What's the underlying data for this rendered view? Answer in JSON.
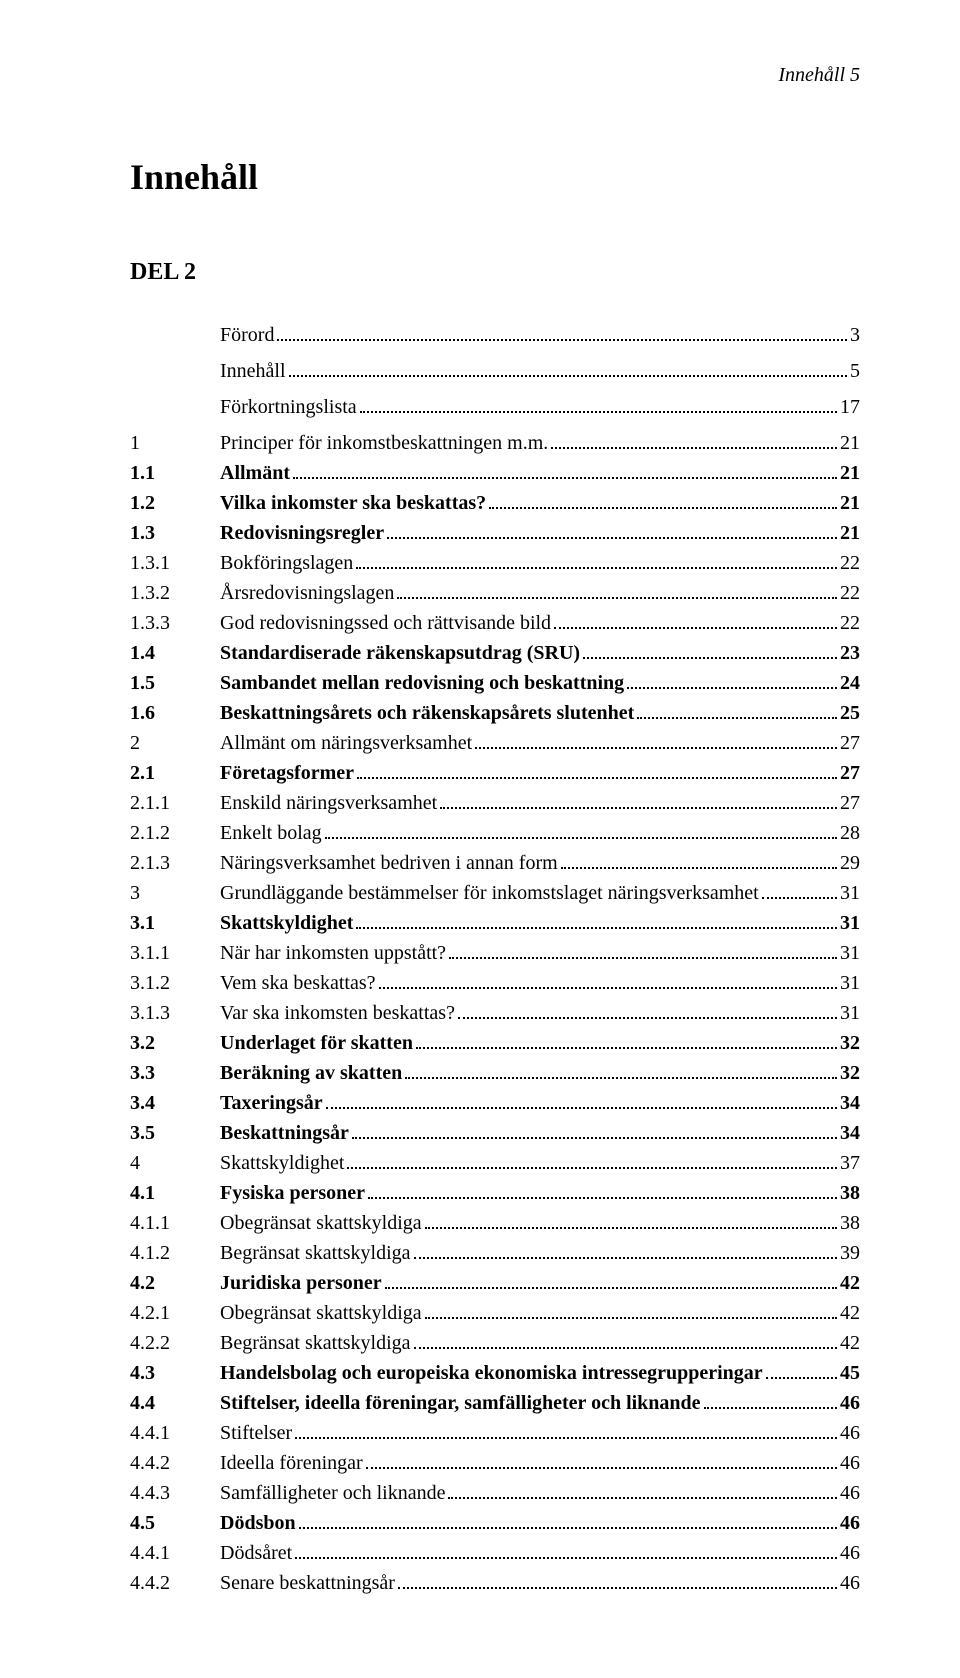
{
  "page_header": "Innehåll 5",
  "main_heading": "Innehåll",
  "part_heading": "DEL 2",
  "pre_entries": [
    {
      "num": "",
      "title": "Förord",
      "page": "3"
    },
    {
      "num": "",
      "title": "Innehåll",
      "page": "5"
    },
    {
      "num": "",
      "title": "Förkortningslista",
      "page": "17"
    }
  ],
  "entries": [
    {
      "num": "1",
      "title": "Principer för inkomstbeskattningen m.m.",
      "page": "21",
      "bold": false
    },
    {
      "num": "1.1",
      "title": "Allmänt",
      "page": "21",
      "bold": true
    },
    {
      "num": "1.2",
      "title": "Vilka inkomster ska beskattas?",
      "page": "21",
      "bold": true
    },
    {
      "num": "1.3",
      "title": "Redovisningsregler",
      "page": "21",
      "bold": true
    },
    {
      "num": "1.3.1",
      "title": "Bokföringslagen",
      "page": "22",
      "bold": false
    },
    {
      "num": "1.3.2",
      "title": "Årsredovisningslagen",
      "page": "22",
      "bold": false
    },
    {
      "num": "1.3.3",
      "title": "God redovisningssed och rättvisande bild",
      "page": "22",
      "bold": false
    },
    {
      "num": "1.4",
      "title": "Standardiserade räkenskapsutdrag (SRU)",
      "page": "23",
      "bold": true
    },
    {
      "num": "1.5",
      "title": "Sambandet mellan redovisning och beskattning",
      "page": "24",
      "bold": true
    },
    {
      "num": "1.6",
      "title": "Beskattningsårets och räkenskapsårets slutenhet",
      "page": "25",
      "bold": true
    },
    {
      "num": "2",
      "title": "Allmänt om näringsverksamhet",
      "page": "27",
      "bold": false
    },
    {
      "num": "2.1",
      "title": "Företagsformer",
      "page": "27",
      "bold": true
    },
    {
      "num": "2.1.1",
      "title": "Enskild näringsverksamhet",
      "page": "27",
      "bold": false
    },
    {
      "num": "2.1.2",
      "title": "Enkelt bolag",
      "page": "28",
      "bold": false
    },
    {
      "num": "2.1.3",
      "title": "Näringsverksamhet bedriven i annan form",
      "page": "29",
      "bold": false
    },
    {
      "num": "3",
      "title": "Grundläggande bestämmelser för inkomstslaget näringsverksamhet",
      "page": "31",
      "bold": false
    },
    {
      "num": "3.1",
      "title": "Skattskyldighet",
      "page": "31",
      "bold": true
    },
    {
      "num": "3.1.1",
      "title": "När har inkomsten uppstått?",
      "page": "31",
      "bold": false
    },
    {
      "num": "3.1.2",
      "title": "Vem ska beskattas?",
      "page": "31",
      "bold": false
    },
    {
      "num": "3.1.3",
      "title": "Var ska inkomsten beskattas?",
      "page": "31",
      "bold": false
    },
    {
      "num": "3.2",
      "title": "Underlaget för skatten",
      "page": "32",
      "bold": true
    },
    {
      "num": "3.3",
      "title": "Beräkning av skatten",
      "page": "32",
      "bold": true
    },
    {
      "num": "3.4",
      "title": "Taxeringsår",
      "page": "34",
      "bold": true
    },
    {
      "num": "3.5",
      "title": "Beskattningsår",
      "page": "34",
      "bold": true
    },
    {
      "num": "4",
      "title": "Skattskyldighet",
      "page": "37",
      "bold": false
    },
    {
      "num": "4.1",
      "title": "Fysiska personer",
      "page": "38",
      "bold": true
    },
    {
      "num": "4.1.1",
      "title": "Obegränsat skattskyldiga",
      "page": "38",
      "bold": false
    },
    {
      "num": "4.1.2",
      "title": "Begränsat skattskyldiga",
      "page": "39",
      "bold": false
    },
    {
      "num": "4.2",
      "title": "Juridiska personer",
      "page": "42",
      "bold": true
    },
    {
      "num": "4.2.1",
      "title": "Obegränsat skattskyldiga",
      "page": "42",
      "bold": false
    },
    {
      "num": "4.2.2",
      "title": "Begränsat skattskyldiga",
      "page": "42",
      "bold": false
    },
    {
      "num": "4.3",
      "title": "Handelsbolag och europeiska ekonomiska intressegrupperingar",
      "page": "45",
      "bold": true
    },
    {
      "num": "4.4",
      "title": "Stiftelser, ideella föreningar, samfälligheter och liknande",
      "page": "46",
      "bold": true
    },
    {
      "num": "4.4.1",
      "title": "Stiftelser",
      "page": "46",
      "bold": false
    },
    {
      "num": "4.4.2",
      "title": "Ideella föreningar",
      "page": "46",
      "bold": false
    },
    {
      "num": "4.4.3",
      "title": "Samfälligheter och liknande",
      "page": "46",
      "bold": false
    },
    {
      "num": "4.5",
      "title": "Dödsbon",
      "page": "46",
      "bold": true
    },
    {
      "num": "4.4.1",
      "title": "Dödsåret",
      "page": "46",
      "bold": false
    },
    {
      "num": "4.4.2",
      "title": "Senare beskattningsår",
      "page": "46",
      "bold": false
    }
  ]
}
